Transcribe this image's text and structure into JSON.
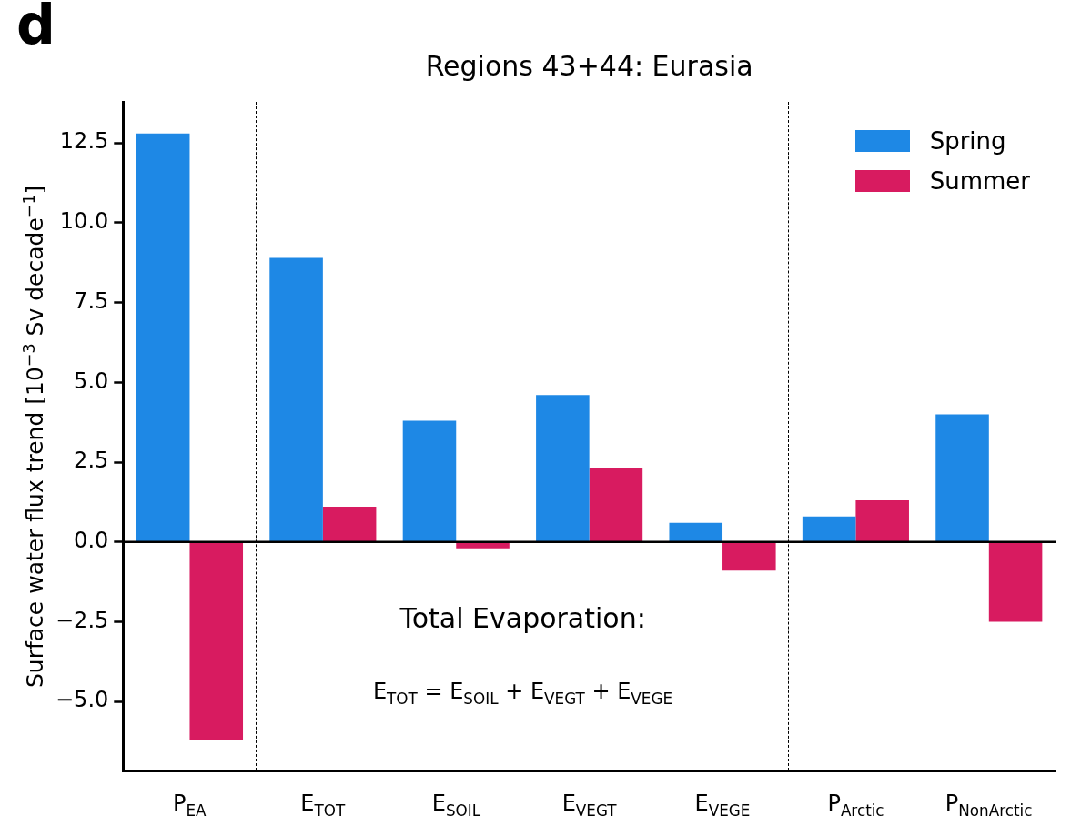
{
  "chart_data": {
    "type": "bar",
    "title": "Regions 43+44: Eurasia",
    "ylabel": "Surface water flux trend [10$^{−3}$ Sv decade$^{−1}$]",
    "categories": [
      "P$_{EA}$",
      "E$_{TOT}$",
      "E$_{SOIL}$",
      "E$_{VEGT}$",
      "E$_{VEGE}$",
      "P$_{Arctic}$",
      "P$_{NonArctic}$"
    ],
    "series": [
      {
        "name": "Spring",
        "color": "#1e88e5",
        "values": [
          12.8,
          8.9,
          3.8,
          4.6,
          0.6,
          0.8,
          4.0
        ]
      },
      {
        "name": "Summer",
        "color": "#d81b60",
        "values": [
          -6.2,
          1.1,
          -0.2,
          2.3,
          -0.9,
          1.3,
          -2.5
        ]
      }
    ],
    "ylim": [
      -7.17,
      13.79
    ],
    "yticks": [
      {
        "value": -5,
        "label": "−5.0"
      },
      {
        "value": -2.5,
        "label": "−2.5"
      },
      {
        "value": 0,
        "label": "0.0"
      },
      {
        "value": 2.5,
        "label": "2.5"
      },
      {
        "value": 5,
        "label": "5.0"
      },
      {
        "value": 7.5,
        "label": "7.5"
      },
      {
        "value": 10,
        "label": "10.0"
      },
      {
        "value": 12.5,
        "label": "12.5"
      }
    ],
    "ref_lines": [
      {
        "axis": "y",
        "value": 0,
        "line_style": "solid",
        "color": "#000000"
      }
    ],
    "annotations": [
      "d",
      "Total Evaporation:",
      "E$_{TOT}$  =  E$_{SOIL}$  +  E$_{VEGT}$  +  E$_{VEGE}$"
    ],
    "grid": false,
    "legend": "top right"
  }
}
